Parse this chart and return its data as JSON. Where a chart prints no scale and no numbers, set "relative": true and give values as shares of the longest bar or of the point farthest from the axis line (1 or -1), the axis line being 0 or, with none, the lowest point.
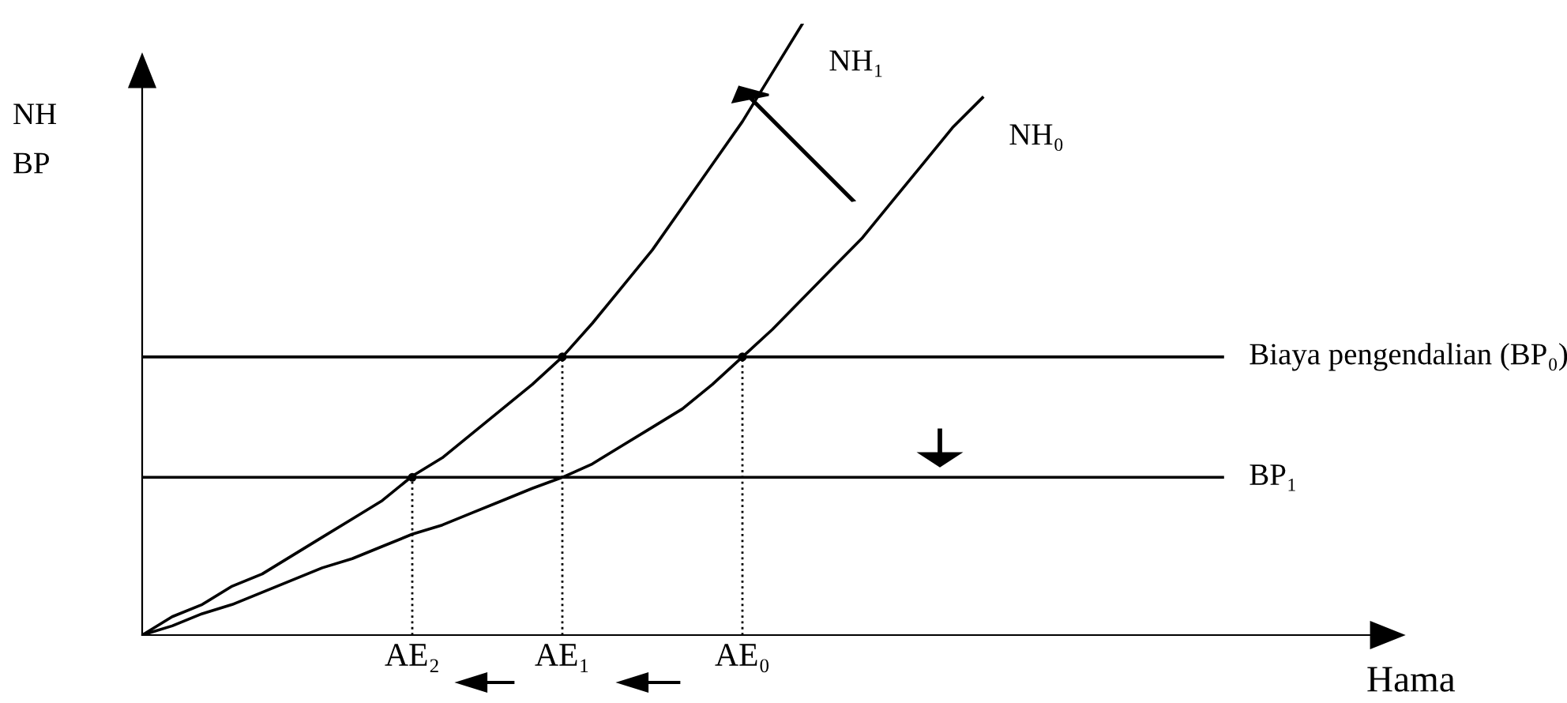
{
  "chart_data": {
    "type": "line",
    "relative": true,
    "tick_labels": "x",
    "ylabel": "NH\nBP",
    "xlabel": "Hama",
    "categories": [
      null,
      null,
      null,
      null,
      null,
      null,
      null,
      null,
      null,
      "AE₂",
      null,
      null,
      null,
      null,
      "AE₁",
      null,
      null,
      null,
      null,
      null,
      "AE₀",
      null,
      null,
      null,
      null,
      null,
      null,
      null,
      null,
      null,
      null,
      null,
      null,
      null,
      null,
      null,
      null
    ],
    "series": [
      {
        "name": "NH₁",
        "color": "#000000",
        "values": [
          0,
          0.03,
          0.05,
          0.08,
          0.1,
          0.13,
          0.16,
          0.19,
          0.22,
          0.26,
          0.29,
          0.33,
          0.37,
          0.41,
          0.455,
          0.51,
          0.57,
          0.63,
          0.7,
          0.77,
          0.84,
          0.92,
          1.0,
          null,
          null,
          null,
          null,
          null,
          null,
          null,
          null,
          null,
          null,
          null,
          null,
          null,
          null
        ]
      },
      {
        "name": "NH₀",
        "color": "#000000",
        "values": [
          0,
          0.015,
          0.035,
          0.05,
          0.07,
          0.09,
          0.11,
          0.125,
          0.145,
          0.165,
          0.18,
          0.2,
          0.22,
          0.24,
          0.258,
          0.28,
          0.31,
          0.34,
          0.37,
          0.41,
          0.455,
          0.5,
          0.55,
          0.6,
          0.65,
          0.71,
          0.77,
          0.83,
          0.879,
          null,
          null,
          null,
          null,
          null,
          null,
          null,
          null
        ]
      },
      {
        "name": "Biaya pengendalian (BP₀)",
        "color": "#000000",
        "values": [
          0.455,
          0.455,
          0.455,
          0.455,
          0.455,
          0.455,
          0.455,
          0.455,
          0.455,
          0.455,
          0.455,
          0.455,
          0.455,
          0.455,
          0.455,
          0.455,
          0.455,
          0.455,
          0.455,
          0.455,
          0.455,
          0.455,
          0.455,
          0.455,
          0.455,
          0.455,
          0.455,
          0.455,
          0.455,
          0.455,
          0.455,
          0.455,
          0.455,
          0.455,
          0.455,
          0.455,
          0.455
        ]
      },
      {
        "name": "BP₁",
        "color": "#000000",
        "values": [
          0.258,
          0.258,
          0.258,
          0.258,
          0.258,
          0.258,
          0.258,
          0.258,
          0.258,
          0.258,
          0.258,
          0.258,
          0.258,
          0.258,
          0.258,
          0.258,
          0.258,
          0.258,
          0.258,
          0.258,
          0.258,
          0.258,
          0.258,
          0.258,
          0.258,
          0.258,
          0.258,
          0.258,
          0.258,
          0.258,
          0.258,
          0.258,
          0.258,
          0.258,
          0.258,
          0.258,
          0.258
        ]
      },
      {
        "color": "#000000",
        "type": "lollipop",
        "marker": "circle",
        "line_style": "dotted",
        "values": [
          null,
          null,
          null,
          null,
          null,
          null,
          null,
          null,
          null,
          0.258,
          null,
          null,
          null,
          null,
          0.455,
          null,
          null,
          null,
          null,
          null,
          0.455,
          null,
          null,
          null,
          null,
          null,
          null,
          null,
          null,
          null,
          null,
          null,
          null,
          null,
          null,
          null,
          null
        ]
      }
    ]
  }
}
